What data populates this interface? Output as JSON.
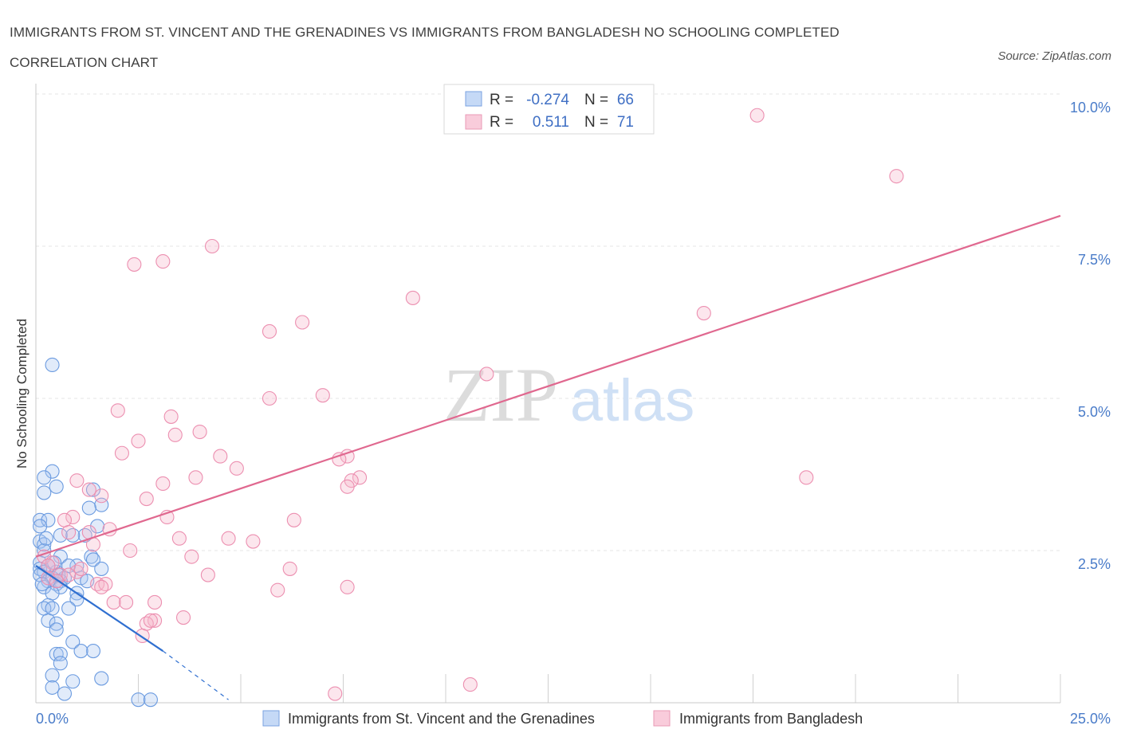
{
  "title_line1": "IMMIGRANTS FROM ST. VINCENT AND THE GRENADINES VS IMMIGRANTS FROM BANGLADESH NO SCHOOLING COMPLETED",
  "title_line2": "CORRELATION CHART",
  "source": "Source: ZipAtlas.com",
  "watermark": {
    "zip": "ZIP",
    "atlas": "atlas"
  },
  "stats": {
    "r_label": "R =",
    "n_label": "N =",
    "blue": {
      "r": "-0.274",
      "n": "66"
    },
    "pink": {
      "r": "0.511",
      "n": "71"
    }
  },
  "colors": {
    "blue": "#6b9be0",
    "blue_line": "#2f6fd0",
    "pink": "#ec8fb0",
    "pink_line": "#e0688f"
  },
  "chart_data": {
    "type": "scatter",
    "xlabel": "",
    "ylabel": "No Schooling Completed",
    "xlim": [
      0,
      25
    ],
    "ylim": [
      0,
      10
    ],
    "x_tick_labels": [
      "0.0%",
      "25.0%"
    ],
    "y_ticks": [
      2.5,
      5.0,
      7.5,
      10.0
    ],
    "y_tick_labels": [
      "2.5%",
      "5.0%",
      "7.5%",
      "10.0%"
    ],
    "legend": [
      "Immigrants from St. Vincent and the Grenadines",
      "Immigrants from Bangladesh"
    ],
    "series": [
      {
        "name": "Immigrants from St. Vincent and the Grenadines",
        "color": "#6b9be0",
        "trend": {
          "x": [
            0.0,
            3.1
          ],
          "y": [
            2.25,
            0.85
          ],
          "dash_to": [
            4.7,
            0.05
          ]
        },
        "points": [
          [
            0.4,
            5.55
          ],
          [
            0.4,
            3.8
          ],
          [
            0.2,
            3.7
          ],
          [
            0.5,
            3.55
          ],
          [
            1.4,
            3.5
          ],
          [
            0.2,
            3.45
          ],
          [
            1.6,
            3.25
          ],
          [
            1.3,
            3.2
          ],
          [
            0.1,
            3.0
          ],
          [
            0.3,
            3.0
          ],
          [
            0.1,
            2.9
          ],
          [
            1.5,
            2.9
          ],
          [
            0.6,
            2.75
          ],
          [
            0.1,
            2.65
          ],
          [
            0.2,
            2.6
          ],
          [
            1.2,
            2.75
          ],
          [
            0.9,
            2.75
          ],
          [
            0.2,
            2.5
          ],
          [
            0.6,
            2.4
          ],
          [
            1.35,
            2.4
          ],
          [
            1.4,
            2.35
          ],
          [
            0.1,
            2.3
          ],
          [
            0.3,
            2.25
          ],
          [
            0.1,
            2.2
          ],
          [
            1.0,
            2.25
          ],
          [
            1.6,
            2.2
          ],
          [
            0.2,
            2.15
          ],
          [
            0.5,
            2.15
          ],
          [
            0.1,
            2.1
          ],
          [
            0.4,
            2.05
          ],
          [
            1.1,
            2.05
          ],
          [
            0.7,
            2.05
          ],
          [
            0.3,
            2.0
          ],
          [
            0.6,
            2.0
          ],
          [
            0.5,
            1.95
          ],
          [
            0.2,
            1.9
          ],
          [
            0.6,
            1.9
          ],
          [
            0.4,
            1.8
          ],
          [
            1.0,
            1.8
          ],
          [
            1.0,
            1.7
          ],
          [
            0.3,
            1.6
          ],
          [
            0.2,
            1.55
          ],
          [
            0.4,
            1.55
          ],
          [
            0.8,
            1.55
          ],
          [
            0.3,
            1.35
          ],
          [
            0.5,
            1.3
          ],
          [
            0.5,
            1.2
          ],
          [
            0.9,
            1.0
          ],
          [
            1.4,
            0.85
          ],
          [
            1.1,
            0.85
          ],
          [
            0.5,
            0.8
          ],
          [
            0.6,
            0.8
          ],
          [
            0.6,
            0.65
          ],
          [
            0.4,
            0.45
          ],
          [
            1.6,
            0.4
          ],
          [
            0.9,
            0.35
          ],
          [
            0.4,
            0.25
          ],
          [
            0.7,
            0.15
          ],
          [
            2.5,
            0.05
          ],
          [
            2.8,
            0.05
          ],
          [
            0.25,
            2.7
          ],
          [
            0.45,
            2.3
          ],
          [
            0.15,
            1.95
          ],
          [
            0.8,
            2.25
          ],
          [
            0.55,
            2.1
          ],
          [
            1.25,
            2.0
          ]
        ]
      },
      {
        "name": "Immigrants from Bangladesh",
        "color": "#ec8fb0",
        "trend": {
          "x": [
            0.0,
            25.0
          ],
          "y": [
            2.4,
            8.0
          ]
        },
        "points": [
          [
            17.6,
            9.65
          ],
          [
            21.0,
            8.65
          ],
          [
            4.3,
            7.5
          ],
          [
            2.4,
            7.2
          ],
          [
            3.1,
            7.25
          ],
          [
            9.2,
            6.65
          ],
          [
            16.3,
            6.4
          ],
          [
            6.5,
            6.25
          ],
          [
            5.7,
            6.1
          ],
          [
            11.0,
            5.4
          ],
          [
            7.0,
            5.05
          ],
          [
            5.7,
            5.0
          ],
          [
            2.0,
            4.8
          ],
          [
            3.3,
            4.7
          ],
          [
            4.0,
            4.45
          ],
          [
            3.4,
            4.4
          ],
          [
            2.5,
            4.3
          ],
          [
            2.1,
            4.1
          ],
          [
            4.5,
            4.05
          ],
          [
            7.6,
            4.05
          ],
          [
            7.4,
            4.0
          ],
          [
            4.9,
            3.85
          ],
          [
            7.9,
            3.7
          ],
          [
            7.7,
            3.65
          ],
          [
            18.8,
            3.7
          ],
          [
            3.9,
            3.7
          ],
          [
            1.0,
            3.65
          ],
          [
            3.1,
            3.6
          ],
          [
            7.6,
            3.55
          ],
          [
            1.3,
            3.5
          ],
          [
            1.6,
            3.4
          ],
          [
            2.7,
            3.35
          ],
          [
            3.2,
            3.05
          ],
          [
            6.3,
            3.0
          ],
          [
            0.9,
            3.05
          ],
          [
            0.7,
            3.0
          ],
          [
            1.8,
            2.85
          ],
          [
            0.8,
            2.8
          ],
          [
            1.3,
            2.8
          ],
          [
            3.5,
            2.7
          ],
          [
            4.7,
            2.7
          ],
          [
            5.3,
            2.65
          ],
          [
            1.4,
            2.6
          ],
          [
            2.3,
            2.5
          ],
          [
            3.8,
            2.4
          ],
          [
            0.2,
            2.4
          ],
          [
            0.4,
            2.3
          ],
          [
            0.3,
            2.25
          ],
          [
            6.2,
            2.2
          ],
          [
            4.2,
            2.1
          ],
          [
            1.0,
            2.15
          ],
          [
            0.6,
            2.1
          ],
          [
            0.3,
            2.05
          ],
          [
            0.5,
            2.0
          ],
          [
            1.5,
            1.95
          ],
          [
            1.7,
            1.95
          ],
          [
            1.6,
            1.9
          ],
          [
            7.6,
            1.9
          ],
          [
            5.9,
            1.85
          ],
          [
            1.9,
            1.65
          ],
          [
            2.2,
            1.65
          ],
          [
            2.9,
            1.65
          ],
          [
            3.6,
            1.4
          ],
          [
            2.9,
            1.35
          ],
          [
            2.7,
            1.3
          ],
          [
            2.8,
            1.35
          ],
          [
            2.6,
            1.1
          ],
          [
            10.6,
            0.3
          ],
          [
            7.3,
            0.15
          ],
          [
            0.8,
            2.1
          ],
          [
            1.1,
            2.2
          ]
        ]
      }
    ]
  }
}
